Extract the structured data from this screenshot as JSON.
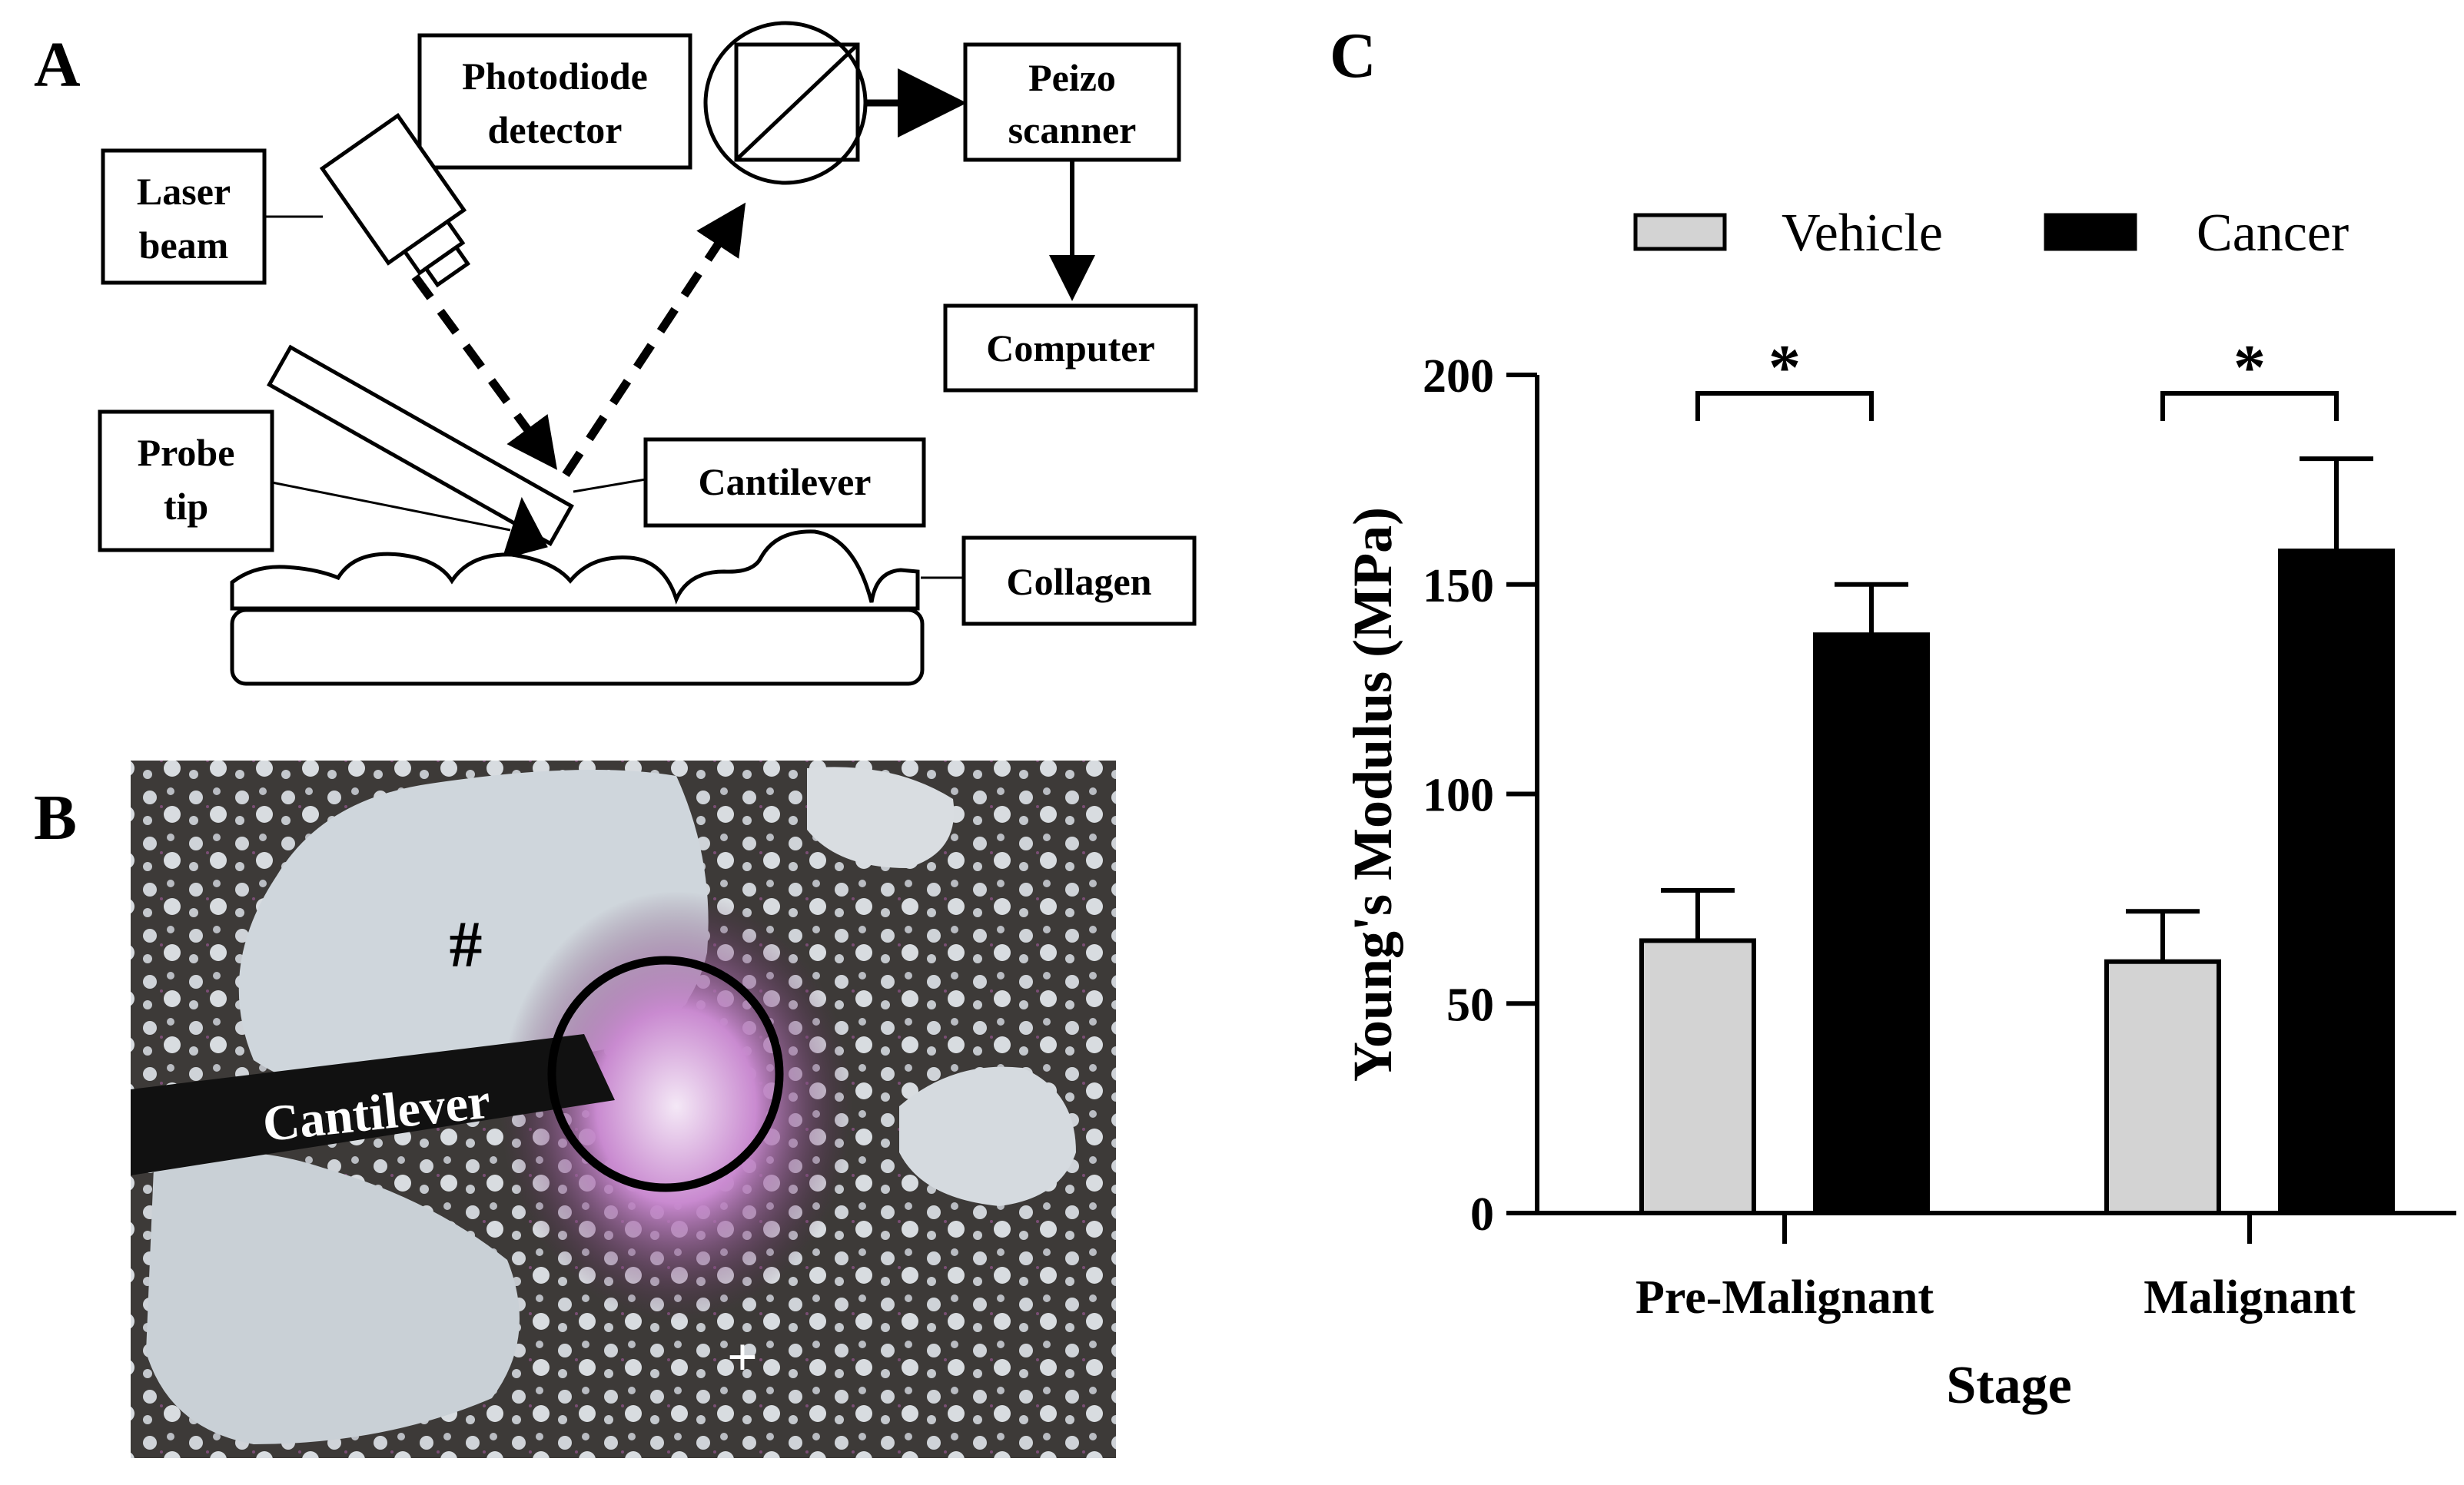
{
  "panels": {
    "a": "A",
    "b": "B",
    "c": "C"
  },
  "diagram": {
    "photodiode": [
      "Photodiode",
      "detector"
    ],
    "peizo": [
      "Peizo",
      "scanner"
    ],
    "laser": [
      "Laser",
      "beam"
    ],
    "computer": "Computer",
    "probe": [
      "Probe",
      "tip"
    ],
    "cantilever": "Cantilever",
    "collagen": "Collagen"
  },
  "micrograph": {
    "cantilever_label": "Cantilever",
    "hash_mark": "#",
    "plus_mark": "+"
  },
  "chart_data": {
    "type": "bar",
    "categories": [
      "Pre-Malignant",
      "Malignant"
    ],
    "series": [
      {
        "name": "Vehicle",
        "values": [
          65,
          60
        ],
        "errors": [
          12,
          12
        ],
        "color": "#d3d3d3"
      },
      {
        "name": "Cancer",
        "values": [
          138,
          158
        ],
        "errors": [
          12,
          22
        ],
        "color": "#000000"
      }
    ],
    "significance": [
      "*",
      "*"
    ],
    "ylabel": "Young's Modulus (MPa)",
    "xlabel": "Stage",
    "ylim": [
      0,
      200
    ],
    "yticks": [
      0,
      50,
      100,
      150,
      200
    ],
    "legend_position": "top"
  }
}
